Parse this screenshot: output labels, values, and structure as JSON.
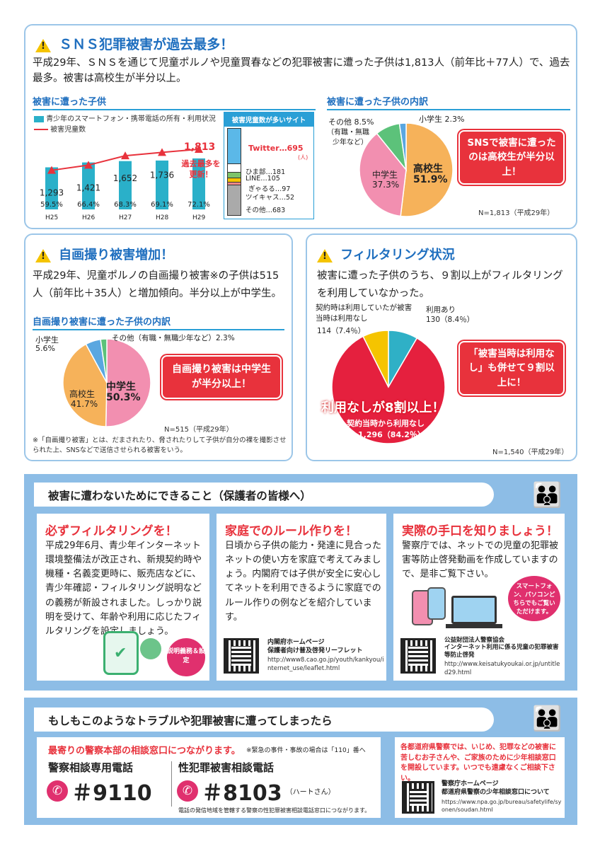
{
  "sns": {
    "title": "ＳＮＳ犯罪被害が過去最多！",
    "ruby_title": "ひがい",
    "text": "平成29年、ＳＮＳを通じて児童ポルノや児童買春などの犯罪被害に遭った子供は1,813人（前年比＋77人）で、過去最多。被害は高校生が半分以上。",
    "left_sub": "被害に遭った子供",
    "legend1": "青少年のスマートフォン・携帯電話の所有・利用状況",
    "legend2": "被害児童数",
    "sites_title": "被害児童数が多いサイト",
    "sites": [
      "Twitter…695",
      "ひま部…181",
      "LINE…105",
      "ぎゃるる…97",
      "ツイキャス…52",
      "その他…683"
    ],
    "sites_unit": "(人)",
    "highlight_value": "1,813",
    "highlight_text": "過去最多を更新！",
    "right_sub": "被害に遭った子供の内訳",
    "callout": "SNSで被害に遭ったのは高校生が半分以上！",
    "n_label": "N=1,813（平成29年）"
  },
  "chart_data": [
    {
      "type": "bar",
      "title": "被害に遭った子供",
      "categories": [
        "H25",
        "H26",
        "H27",
        "H28",
        "H29"
      ],
      "series": [
        {
          "name": "青少年のスマートフォン・携帯電話の所有・利用状況",
          "values": [
            59.5,
            66.4,
            68.3,
            69.1,
            72.1
          ],
          "labels": [
            "59.5%",
            "66.4%",
            "68.3%",
            "69.1%",
            "72.1%"
          ]
        },
        {
          "name": "被害児童数",
          "values": [
            1293,
            1421,
            1652,
            1736,
            1813
          ],
          "labels": [
            "1,293",
            "1,421",
            "1,652",
            "1,736",
            "1,813"
          ]
        }
      ]
    },
    {
      "type": "pie",
      "title": "被害に遭った子供の内訳",
      "slices": [
        {
          "label": "高校生",
          "value": 51.9,
          "color": "#f6b25a"
        },
        {
          "label": "中学生",
          "value": 37.3,
          "color": "#f28fb0"
        },
        {
          "label": "その他（有職・無職少年など）",
          "value": 8.5,
          "color": "#5cc27a"
        },
        {
          "label": "小学生",
          "value": 2.3,
          "color": "#5aa7e0"
        }
      ]
    },
    {
      "type": "pie",
      "title": "自画撮り被害に遭った子供の内訳",
      "slices": [
        {
          "label": "中学生",
          "value": 50.3,
          "color": "#f28fb0"
        },
        {
          "label": "高校生",
          "value": 41.7,
          "color": "#f6b25a"
        },
        {
          "label": "小学生",
          "value": 5.6,
          "color": "#5aa7e0"
        },
        {
          "label": "その他（有職・無職少年など）",
          "value": 2.3,
          "color": "#5cc27a"
        }
      ]
    },
    {
      "type": "pie",
      "title": "フィルタリング状況",
      "slices": [
        {
          "label": "利用あり",
          "value": 8.4,
          "count": 130,
          "color": "#2fb0c6"
        },
        {
          "label": "契約当時から利用なし",
          "value": 84.2,
          "count": 1296,
          "color": "#e5203e"
        },
        {
          "label": "契約時は利用していたが被害当時は利用なし",
          "value": 7.4,
          "count": 114,
          "color": "#f5c400"
        }
      ]
    }
  ],
  "pie1_labels": {
    "koukou": "高校生",
    "koukou_pct": "51.9%",
    "chuu": "中学生",
    "chuu_pct": "37.3%",
    "other": "その他 8.5%",
    "other2": "（有職・無職",
    "other3": "少年など）",
    "shou": "小学生 2.3%"
  },
  "jigadori": {
    "title": "自画撮り被害増加！",
    "text": "平成29年、児童ポルノの自画撮り被害※の子供は515人（前年比＋35人）と増加傾向。半分以上が中学生。",
    "sub": "自画撮り被害に遭った子供の内訳",
    "other": "その他（有職・無職少年など）2.3%",
    "shou": "小学生",
    "shou_pct": "5.6%",
    "koukou": "高校生",
    "koukou_pct": "41.7%",
    "chuu": "中学生",
    "chuu_pct": "50.3%",
    "callout": "自画撮り被害は中学生が半分以上！",
    "n_label": "N=515（平成29年）",
    "note": "※「自画撮り被害」とは、だまされたり、脅されたりして子供が自分の裸を撮影させられた上、SNSなどで送信させられる被害をいう。"
  },
  "filter": {
    "title": "フィルタリング状況",
    "text": "被害に遭った子供のうち、９割以上がフィルタリングを利用していなかった。",
    "lbl_change": "契約時は利用していたが被害当時は利用なし",
    "lbl_change_val": "114（7.4％）",
    "lbl_yes": "利用あり",
    "lbl_yes_val": "130（8.4％）",
    "callout": "「被害当時は利用なし」も併せて９割以上に！",
    "big": "利用なしが8割以上！",
    "lbl_no": "契約当時から利用なし",
    "lbl_no_val": "1,296（84.2％）",
    "n_label": "N=1,540（平成29年）"
  },
  "tips": {
    "heading": "被害に遭わないためにできること（保護者の皆様へ）",
    "c1_title": "必ずフィルタリングを！",
    "c1_text": "平成29年6月、青少年インターネット環境整備法が改正され、新規契約時や機種・名義変更時に、販売店などに、青少年確認・フィルタリング説明などの義務が新設されました。しっかり説明を受けて、年齢や利用に応じたフィルタリングを設定しましょう。",
    "c1_badge": "説明義務＆設定",
    "c2_title": "家庭でのルール作りを！",
    "c2_text": "日頃から子供の能力・発達に見合ったネットの使い方を家庭で考えてみましょう。内閣府では子供が安全に安心してネットを利用できるように家庭でのルール作りの例などを紹介しています。",
    "c2_src1": "内閣府ホームページ",
    "c2_src2": "保護者向け普及啓発リーフレット",
    "c2_url": "http://www8.cao.go.jp/youth/kankyou/internet_use/leaflet.html",
    "c3_title": "実際の手口を知りましょう！",
    "c3_text": "警察庁では、ネットでの児童の犯罪被害等防止啓発動画を作成していますので、是非ご覧下さい。",
    "c3_bubble": "スマートフォン、パソコンどちらでもご覧いただけます。",
    "c3_src1": "公益財団法人警察協会",
    "c3_src2": "インターネット利用に係る児童の犯罪被害等防止啓発",
    "c3_url": "http://www.keisatukyoukai.or.jp/untitled29.html"
  },
  "contact": {
    "heading": "もしもこのようなトラブルや犯罪被害に遭ってしまったら",
    "lead": "最寄りの警察本部の相談窓口につながります。",
    "lead_note": "※緊急の事件・事故の場合は「110」番へ",
    "t1_label": "警察相談専用電話",
    "t1_num": "＃9110",
    "t2_label": "性犯罪被害相談電話",
    "t2_num": "＃8103",
    "t2_note": "（ハートさん）",
    "t2_sub": "電話の発信地域を管轄する警察の性犯罪被害相談電話窓口につながります。",
    "right_text": "各都道府県警察では、いじめ、犯罪などの被害に苦しむお子さんや、ご家族のために少年相談窓口を開設しています。いつでも遠慮なくご相談下さい。",
    "src1": "警察庁ホームページ",
    "src2": "都道府県警察の少年相談窓口について",
    "url": "https://www.npa.go.jp/bureau/safetylife/syonen/soudan.html"
  }
}
